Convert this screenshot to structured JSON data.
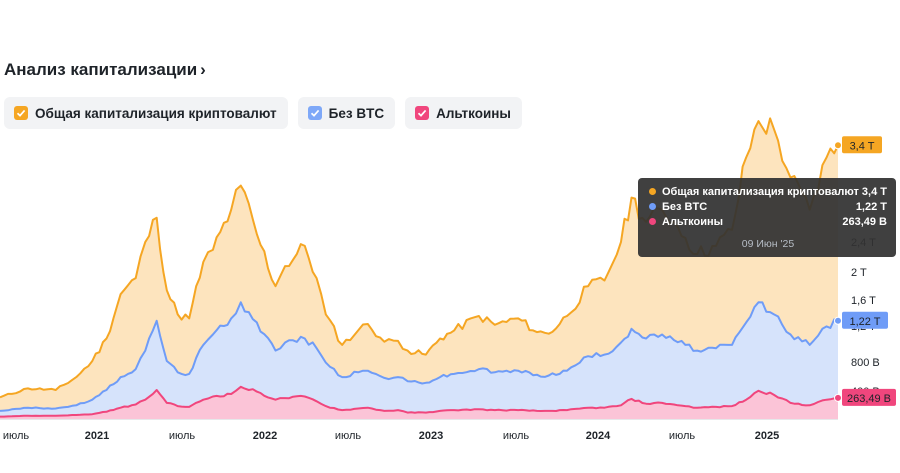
{
  "header": {
    "title": "Анализ капитализации",
    "chevron": "›"
  },
  "legend": [
    {
      "label": "Общая капитализация криптовалют",
      "color": "#f0b90b",
      "box": "#f5a623"
    },
    {
      "label": "Без BTC",
      "color": "#6f9cf7",
      "box": "#7ea8f8"
    },
    {
      "label": "Альткоины",
      "color": "#f0467d",
      "box": "#f0467d"
    }
  ],
  "tooltip": {
    "rows": [
      {
        "name": "Общая капитализация криптовалют",
        "value": "3,4 T",
        "color": "#f5a623"
      },
      {
        "name": "Без BTC",
        "value": "1,22 T",
        "color": "#6f9cf7"
      },
      {
        "name": "Альткоины",
        "value": "263,49 B",
        "color": "#f0467d"
      }
    ],
    "date": "09 Июн '25"
  },
  "chart_data": {
    "type": "area",
    "x_tick_labels": [
      "июль",
      "2021",
      "июль",
      "2022",
      "июль",
      "2023",
      "июль",
      "2024",
      "июль",
      "2025"
    ],
    "y_tick_labels": [
      "400 B",
      "800 B",
      "1,2 T",
      "1,6 T",
      "2 T",
      "2,4 T"
    ],
    "ylim": [
      0,
      3.8
    ],
    "x_unit": "date",
    "series": [
      {
        "name": "Общая капитализация криптовалют",
        "color": "#f5a623",
        "fill": "#fde4be",
        "end_label": "3,4 T",
        "points": [
          [
            "2020-06-01",
            0.27
          ],
          [
            "2020-08-01",
            0.38
          ],
          [
            "2020-10-01",
            0.36
          ],
          [
            "2020-11-15",
            0.52
          ],
          [
            "2020-12-20",
            0.72
          ],
          [
            "2021-01-20",
            1.0
          ],
          [
            "2021-02-20",
            1.55
          ],
          [
            "2021-03-25",
            1.75
          ],
          [
            "2021-04-15",
            2.2
          ],
          [
            "2021-05-10",
            2.5
          ],
          [
            "2021-06-01",
            1.6
          ],
          [
            "2021-06-25",
            1.3
          ],
          [
            "2021-07-20",
            1.25
          ],
          [
            "2021-08-20",
            1.95
          ],
          [
            "2021-09-10",
            2.1
          ],
          [
            "2021-10-20",
            2.6
          ],
          [
            "2021-11-10",
            2.9
          ],
          [
            "2021-12-15",
            2.3
          ],
          [
            "2022-01-25",
            1.65
          ],
          [
            "2022-02-15",
            1.9
          ],
          [
            "2022-03-30",
            2.15
          ],
          [
            "2022-04-25",
            1.75
          ],
          [
            "2022-05-15",
            1.3
          ],
          [
            "2022-06-20",
            0.92
          ],
          [
            "2022-07-25",
            1.1
          ],
          [
            "2022-08-15",
            1.18
          ],
          [
            "2022-09-20",
            0.96
          ],
          [
            "2022-10-20",
            0.97
          ],
          [
            "2022-11-10",
            0.85
          ],
          [
            "2022-12-20",
            0.8
          ],
          [
            "2023-01-20",
            1.0
          ],
          [
            "2023-02-20",
            1.1
          ],
          [
            "2023-04-15",
            1.28
          ],
          [
            "2023-05-20",
            1.17
          ],
          [
            "2023-07-10",
            1.25
          ],
          [
            "2023-08-20",
            1.08
          ],
          [
            "2023-09-15",
            1.06
          ],
          [
            "2023-10-25",
            1.28
          ],
          [
            "2023-12-10",
            1.65
          ],
          [
            "2024-01-15",
            1.72
          ],
          [
            "2024-02-20",
            2.2
          ],
          [
            "2024-03-14",
            2.75
          ],
          [
            "2024-04-15",
            2.45
          ],
          [
            "2024-05-20",
            2.6
          ],
          [
            "2024-06-15",
            2.45
          ],
          [
            "2024-07-10",
            2.25
          ],
          [
            "2024-08-05",
            2.05
          ],
          [
            "2024-09-15",
            2.15
          ],
          [
            "2024-10-20",
            2.35
          ],
          [
            "2024-11-20",
            3.25
          ],
          [
            "2024-12-17",
            3.7
          ],
          [
            "2025-01-20",
            3.6
          ],
          [
            "2025-02-25",
            3.0
          ],
          [
            "2025-04-08",
            2.6
          ],
          [
            "2025-05-15",
            3.25
          ],
          [
            "2025-06-09",
            3.4
          ]
        ]
      },
      {
        "name": "Без BTC",
        "color": "#6f9cf7",
        "fill": "#d6e3fb",
        "end_label": "1,22 T",
        "points": [
          [
            "2020-06-01",
            0.1
          ],
          [
            "2020-08-01",
            0.14
          ],
          [
            "2020-10-01",
            0.13
          ],
          [
            "2020-11-15",
            0.17
          ],
          [
            "2020-12-20",
            0.24
          ],
          [
            "2021-01-20",
            0.36
          ],
          [
            "2021-02-20",
            0.52
          ],
          [
            "2021-03-25",
            0.62
          ],
          [
            "2021-04-15",
            0.85
          ],
          [
            "2021-05-10",
            1.22
          ],
          [
            "2021-06-01",
            0.72
          ],
          [
            "2021-06-25",
            0.58
          ],
          [
            "2021-07-20",
            0.56
          ],
          [
            "2021-08-20",
            0.92
          ],
          [
            "2021-09-10",
            1.05
          ],
          [
            "2021-10-20",
            1.25
          ],
          [
            "2021-11-10",
            1.45
          ],
          [
            "2021-12-15",
            1.2
          ],
          [
            "2022-01-25",
            0.85
          ],
          [
            "2022-02-15",
            0.95
          ],
          [
            "2022-03-30",
            1.0
          ],
          [
            "2022-04-25",
            0.88
          ],
          [
            "2022-05-15",
            0.7
          ],
          [
            "2022-06-20",
            0.52
          ],
          [
            "2022-07-25",
            0.58
          ],
          [
            "2022-08-15",
            0.6
          ],
          [
            "2022-09-20",
            0.51
          ],
          [
            "2022-10-20",
            0.52
          ],
          [
            "2022-11-10",
            0.47
          ],
          [
            "2022-12-20",
            0.45
          ],
          [
            "2023-01-20",
            0.52
          ],
          [
            "2023-02-20",
            0.56
          ],
          [
            "2023-04-15",
            0.62
          ],
          [
            "2023-05-20",
            0.58
          ],
          [
            "2023-07-10",
            0.6
          ],
          [
            "2023-08-20",
            0.55
          ],
          [
            "2023-09-15",
            0.54
          ],
          [
            "2023-10-25",
            0.6
          ],
          [
            "2023-12-10",
            0.78
          ],
          [
            "2024-01-15",
            0.8
          ],
          [
            "2024-02-20",
            0.95
          ],
          [
            "2024-03-14",
            1.12
          ],
          [
            "2024-04-15",
            1.0
          ],
          [
            "2024-05-20",
            1.05
          ],
          [
            "2024-06-15",
            0.98
          ],
          [
            "2024-07-10",
            0.92
          ],
          [
            "2024-08-05",
            0.85
          ],
          [
            "2024-09-15",
            0.88
          ],
          [
            "2024-10-20",
            0.92
          ],
          [
            "2024-11-20",
            1.2
          ],
          [
            "2024-12-17",
            1.45
          ],
          [
            "2025-01-20",
            1.3
          ],
          [
            "2025-02-25",
            1.05
          ],
          [
            "2025-04-08",
            0.92
          ],
          [
            "2025-05-15",
            1.15
          ],
          [
            "2025-06-09",
            1.22
          ]
        ]
      },
      {
        "name": "Альткоины",
        "color": "#f0467d",
        "fill": "#fbc4d7",
        "end_label": "263,49 B",
        "points": [
          [
            "2020-06-01",
            0.03
          ],
          [
            "2020-08-01",
            0.04
          ],
          [
            "2020-10-01",
            0.04
          ],
          [
            "2020-11-15",
            0.05
          ],
          [
            "2020-12-20",
            0.06
          ],
          [
            "2021-01-20",
            0.09
          ],
          [
            "2021-02-20",
            0.14
          ],
          [
            "2021-03-25",
            0.18
          ],
          [
            "2021-04-15",
            0.24
          ],
          [
            "2021-05-10",
            0.36
          ],
          [
            "2021-06-01",
            0.2
          ],
          [
            "2021-06-25",
            0.16
          ],
          [
            "2021-07-20",
            0.15
          ],
          [
            "2021-08-20",
            0.24
          ],
          [
            "2021-09-10",
            0.28
          ],
          [
            "2021-10-20",
            0.31
          ],
          [
            "2021-11-10",
            0.4
          ],
          [
            "2021-12-15",
            0.34
          ],
          [
            "2022-01-25",
            0.24
          ],
          [
            "2022-02-15",
            0.26
          ],
          [
            "2022-03-30",
            0.28
          ],
          [
            "2022-04-25",
            0.22
          ],
          [
            "2022-05-15",
            0.16
          ],
          [
            "2022-06-20",
            0.11
          ],
          [
            "2022-07-25",
            0.13
          ],
          [
            "2022-08-15",
            0.14
          ],
          [
            "2022-09-20",
            0.1
          ],
          [
            "2022-10-20",
            0.11
          ],
          [
            "2022-11-10",
            0.08
          ],
          [
            "2022-12-20",
            0.08
          ],
          [
            "2023-01-20",
            0.1
          ],
          [
            "2023-02-20",
            0.11
          ],
          [
            "2023-04-15",
            0.12
          ],
          [
            "2023-05-20",
            0.11
          ],
          [
            "2023-07-10",
            0.11
          ],
          [
            "2023-08-20",
            0.1
          ],
          [
            "2023-09-15",
            0.1
          ],
          [
            "2023-10-25",
            0.11
          ],
          [
            "2023-12-10",
            0.14
          ],
          [
            "2024-01-15",
            0.14
          ],
          [
            "2024-02-20",
            0.17
          ],
          [
            "2024-03-14",
            0.25
          ],
          [
            "2024-04-15",
            0.19
          ],
          [
            "2024-05-20",
            0.2
          ],
          [
            "2024-06-15",
            0.18
          ],
          [
            "2024-07-10",
            0.16
          ],
          [
            "2024-08-05",
            0.14
          ],
          [
            "2024-09-15",
            0.15
          ],
          [
            "2024-10-20",
            0.16
          ],
          [
            "2024-11-20",
            0.24
          ],
          [
            "2024-12-17",
            0.35
          ],
          [
            "2025-01-20",
            0.3
          ],
          [
            "2025-02-25",
            0.2
          ],
          [
            "2025-04-08",
            0.17
          ],
          [
            "2025-05-15",
            0.24
          ],
          [
            "2025-06-09",
            0.263
          ]
        ]
      }
    ]
  }
}
